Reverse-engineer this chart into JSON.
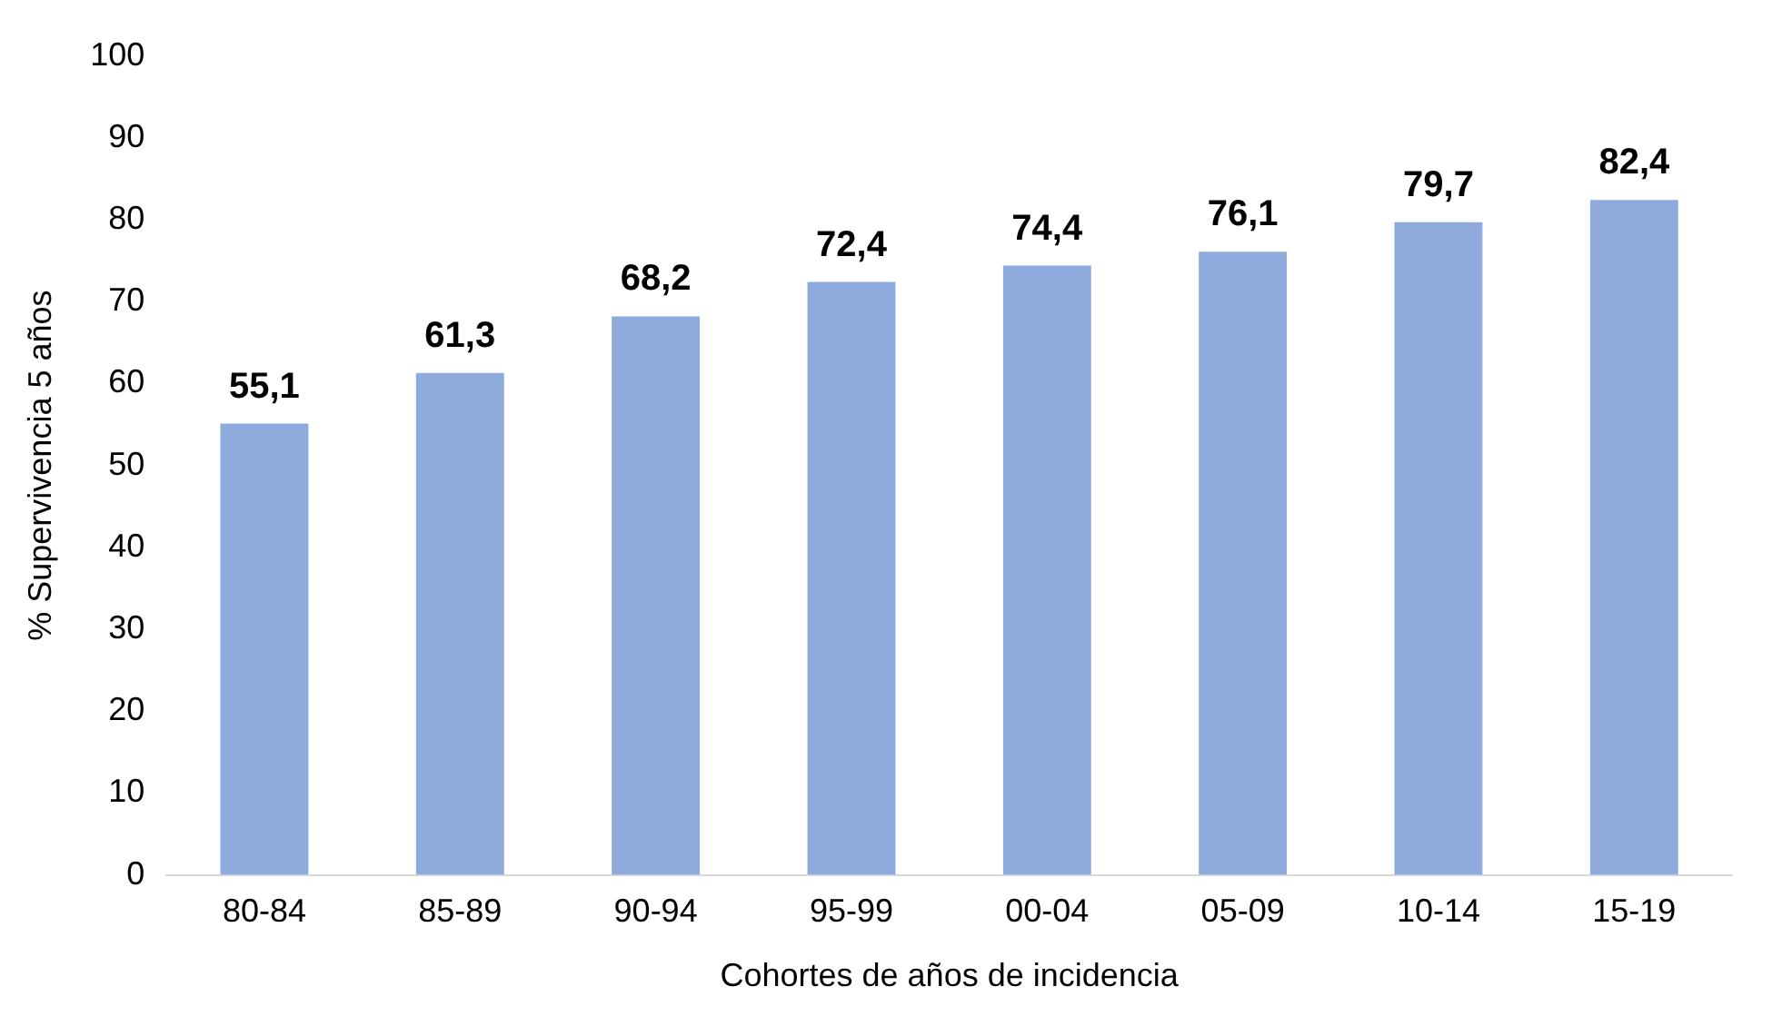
{
  "chart_data": {
    "type": "bar",
    "xlabel": "Cohortes de años de incidencia",
    "ylabel": "% Supervivencia 5 años",
    "categories": [
      "80-84",
      "85-89",
      "90-94",
      "95-99",
      "00-04",
      "05-09",
      "10-14",
      "15-19"
    ],
    "values": [
      55.1,
      61.3,
      68.2,
      72.4,
      74.4,
      76.1,
      79.7,
      82.4
    ],
    "value_labels": [
      "55,1",
      "61,3",
      "68,2",
      "72,4",
      "74,4",
      "76,1",
      "79,7",
      "82,4"
    ],
    "color": "#8faadc",
    "ylim": [
      0,
      100
    ],
    "yticks": [
      0,
      10,
      20,
      30,
      40,
      50,
      60,
      70,
      80,
      90,
      100
    ],
    "grid": false,
    "legend": false
  }
}
